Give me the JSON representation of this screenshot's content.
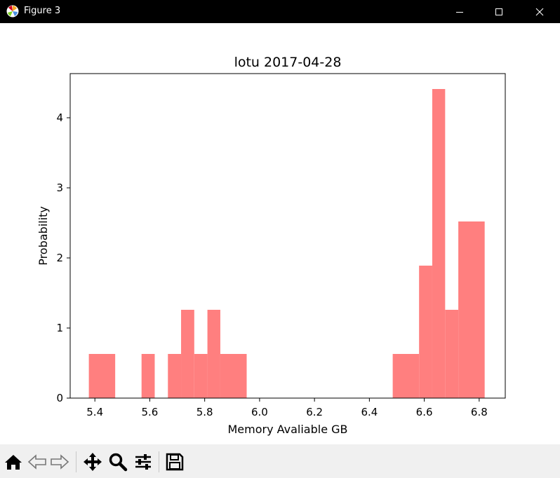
{
  "window": {
    "title": "Figure 3",
    "controls": [
      "minimize",
      "maximize",
      "close"
    ]
  },
  "toolbar": {
    "buttons": [
      {
        "name": "home",
        "icon": "home-icon"
      },
      {
        "name": "back",
        "icon": "back-arrow-icon"
      },
      {
        "name": "forward",
        "icon": "forward-arrow-icon"
      },
      {
        "name": "pan",
        "icon": "move-icon"
      },
      {
        "name": "zoom",
        "icon": "zoom-icon"
      },
      {
        "name": "configure-subplots",
        "icon": "sliders-icon"
      },
      {
        "name": "save",
        "icon": "save-icon"
      }
    ]
  },
  "chart_data": {
    "type": "bar",
    "title": "lotu 2017-04-28",
    "xlabel": "Memory Avaliable GB",
    "ylabel": "Probability",
    "xlim": [
      5.31,
      6.895
    ],
    "ylim": [
      0,
      4.63
    ],
    "xticks": [
      5.4,
      5.6,
      5.8,
      6.0,
      6.2,
      6.4,
      6.6,
      6.8
    ],
    "xtick_labels": [
      "5.4",
      "5.6",
      "5.8",
      "6.0",
      "6.2",
      "6.4",
      "6.6",
      "6.8"
    ],
    "yticks": [
      0,
      1,
      2,
      3,
      4
    ],
    "ytick_labels": [
      "0",
      "1",
      "2",
      "3",
      "4"
    ],
    "grid": false,
    "bar_color": "#ff7f7f",
    "bins": [
      {
        "x0": 5.378,
        "x1": 5.474,
        "value": 0.63
      },
      {
        "x0": 5.57,
        "x1": 5.618,
        "value": 0.63
      },
      {
        "x0": 5.666,
        "x1": 5.714,
        "value": 0.63
      },
      {
        "x0": 5.714,
        "x1": 5.762,
        "value": 1.26
      },
      {
        "x0": 5.762,
        "x1": 5.81,
        "value": 0.63
      },
      {
        "x0": 5.81,
        "x1": 5.857,
        "value": 1.26
      },
      {
        "x0": 5.857,
        "x1": 5.953,
        "value": 0.63
      },
      {
        "x0": 6.485,
        "x1": 6.581,
        "value": 0.63
      },
      {
        "x0": 6.581,
        "x1": 6.629,
        "value": 1.89
      },
      {
        "x0": 6.629,
        "x1": 6.676,
        "value": 4.41
      },
      {
        "x0": 6.676,
        "x1": 6.724,
        "value": 1.26
      },
      {
        "x0": 6.724,
        "x1": 6.82,
        "value": 2.52
      }
    ]
  }
}
